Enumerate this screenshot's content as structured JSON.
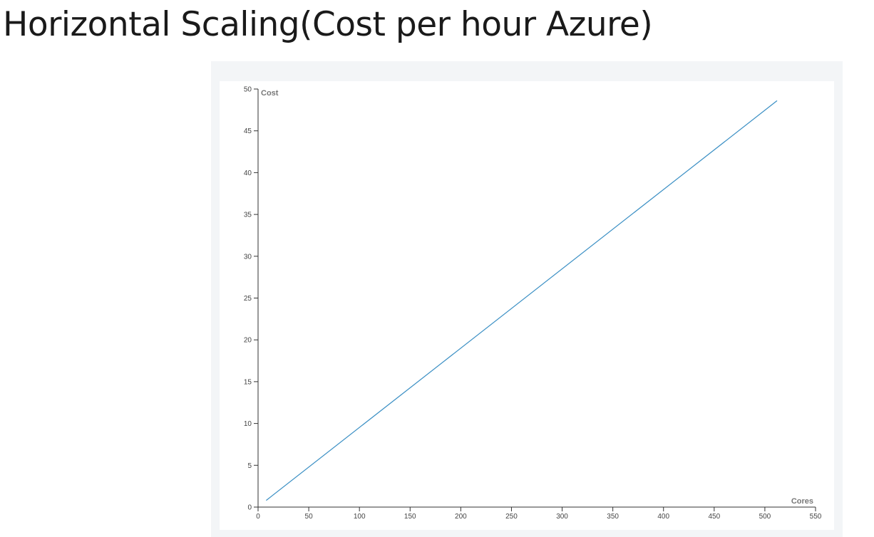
{
  "slide": {
    "title": "Horizontal Scaling(Cost per hour Azure)"
  },
  "chart_data": {
    "type": "line",
    "xlabel": "Cores",
    "ylabel": "Cost",
    "xlim": [
      0,
      550
    ],
    "ylim": [
      0,
      50
    ],
    "xticks": [
      0,
      50,
      100,
      150,
      200,
      250,
      300,
      350,
      400,
      450,
      500,
      550
    ],
    "yticks": [
      0,
      5,
      10,
      15,
      20,
      25,
      30,
      35,
      40,
      45,
      50
    ],
    "grid": false,
    "series": [
      {
        "color": "#3a8fc4",
        "x": [
          8,
          512
        ],
        "y": [
          0.8,
          48.6
        ]
      }
    ],
    "colors": {
      "axis": "#333333",
      "frame_background": "#f3f5f7",
      "plot_background": "#ffffff"
    }
  }
}
